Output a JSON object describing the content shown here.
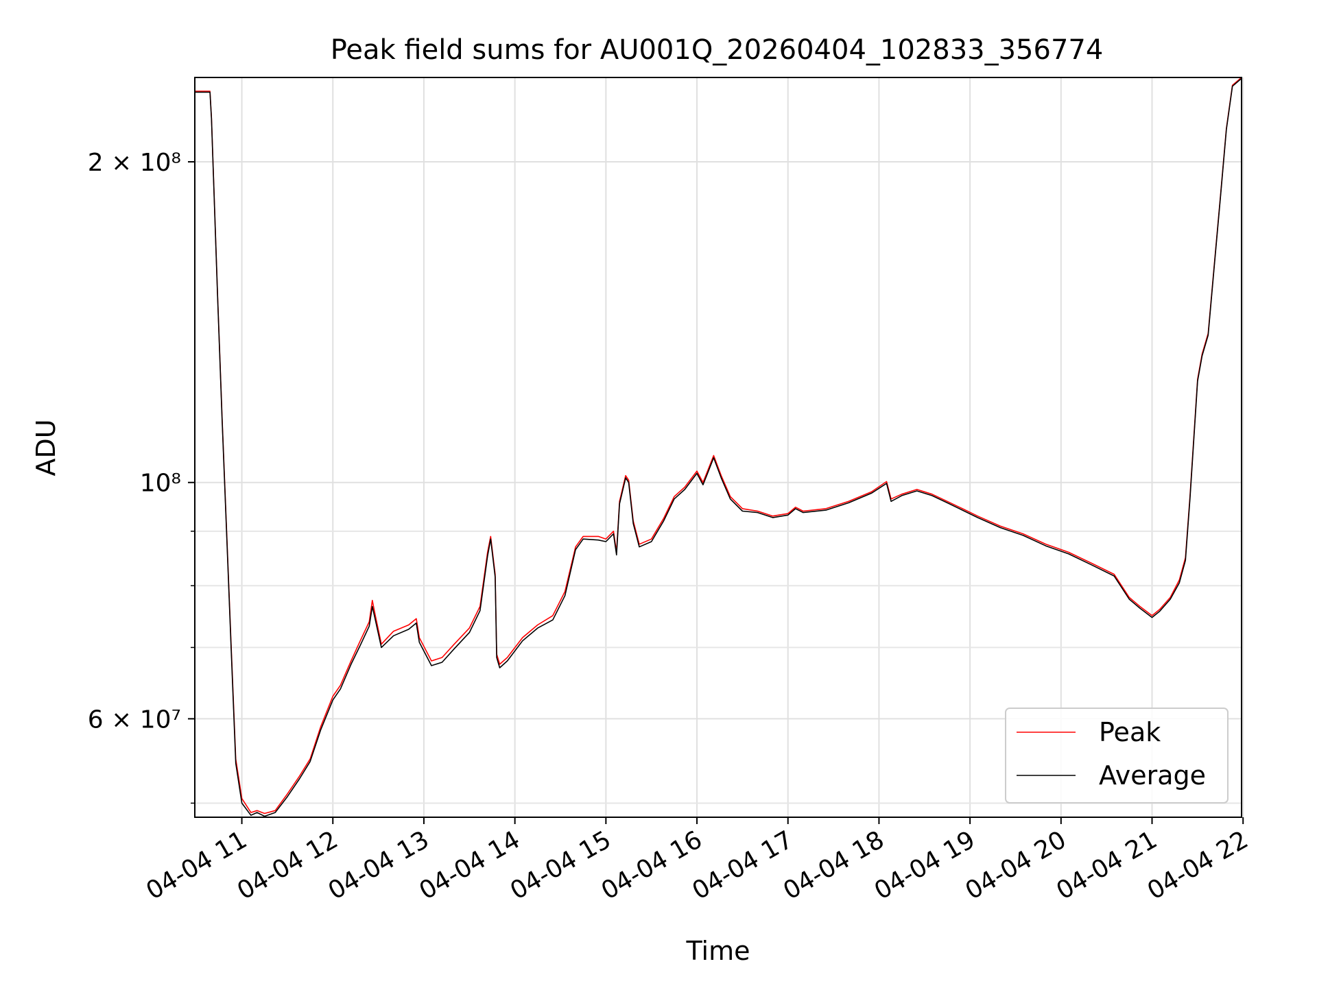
{
  "chart_data": {
    "type": "line",
    "title": "Peak field sums for AU001Q_20260404_102833_356774",
    "xlabel": "Time",
    "ylabel": "ADU",
    "y_scale": "log",
    "grid": true,
    "legend_position": "lower-right",
    "xlim": [
      "2026-04-04 10:29",
      "2026-04-04 21:59"
    ],
    "ylim": [
      48500000,
      240000000
    ],
    "x_ticks": [
      {
        "label": "04-04 11",
        "time": "2026-04-04 11:00"
      },
      {
        "label": "04-04 12",
        "time": "2026-04-04 12:00"
      },
      {
        "label": "04-04 13",
        "time": "2026-04-04 13:00"
      },
      {
        "label": "04-04 14",
        "time": "2026-04-04 14:00"
      },
      {
        "label": "04-04 15",
        "time": "2026-04-04 15:00"
      },
      {
        "label": "04-04 16",
        "time": "2026-04-04 16:00"
      },
      {
        "label": "04-04 17",
        "time": "2026-04-04 17:00"
      },
      {
        "label": "04-04 18",
        "time": "2026-04-04 18:00"
      },
      {
        "label": "04-04 19",
        "time": "2026-04-04 19:00"
      },
      {
        "label": "04-04 20",
        "time": "2026-04-04 20:00"
      },
      {
        "label": "04-04 21",
        "time": "2026-04-04 21:00"
      },
      {
        "label": "04-04 22",
        "time": "2026-04-04 22:00"
      }
    ],
    "y_ticks_major": [
      {
        "label": "6 × 10⁷",
        "value": 60000000
      },
      {
        "label": "10⁸",
        "value": 100000000
      },
      {
        "label": "2 × 10⁸",
        "value": 200000000
      }
    ],
    "y_ticks_minor": [
      50000000,
      70000000,
      80000000,
      90000000
    ],
    "series": [
      {
        "name": "Peak",
        "color": "#ff0000",
        "points": [
          [
            "2026-04-04 10:29",
            233000000
          ],
          [
            "2026-04-04 10:39",
            233000000
          ],
          [
            "2026-04-04 10:40",
            220000000
          ],
          [
            "2026-04-04 10:44",
            150000000
          ],
          [
            "2026-04-04 10:47",
            115000000
          ],
          [
            "2026-04-04 10:50",
            90000000
          ],
          [
            "2026-04-04 10:53",
            70000000
          ],
          [
            "2026-04-04 10:56",
            55000000
          ],
          [
            "2026-04-04 11:00",
            50500000
          ],
          [
            "2026-04-04 11:06",
            49000000
          ],
          [
            "2026-04-04 11:10",
            49200000
          ],
          [
            "2026-04-04 11:15",
            48900000
          ],
          [
            "2026-04-04 11:22",
            49200000
          ],
          [
            "2026-04-04 11:30",
            51000000
          ],
          [
            "2026-04-04 11:38",
            53000000
          ],
          [
            "2026-04-04 11:45",
            55000000
          ],
          [
            "2026-04-04 11:52",
            59000000
          ],
          [
            "2026-04-04 12:00",
            63000000
          ],
          [
            "2026-04-04 12:05",
            64500000
          ],
          [
            "2026-04-04 12:12",
            68000000
          ],
          [
            "2026-04-04 12:18",
            71000000
          ],
          [
            "2026-04-04 12:24",
            74000000
          ],
          [
            "2026-04-04 12:26",
            77500000
          ],
          [
            "2026-04-04 12:28",
            75000000
          ],
          [
            "2026-04-04 12:32",
            70500000
          ],
          [
            "2026-04-04 12:40",
            72500000
          ],
          [
            "2026-04-04 12:50",
            73500000
          ],
          [
            "2026-04-04 12:55",
            74500000
          ],
          [
            "2026-04-04 12:57",
            71500000
          ],
          [
            "2026-04-04 13:05",
            68000000
          ],
          [
            "2026-04-04 13:12",
            68500000
          ],
          [
            "2026-04-04 13:20",
            70500000
          ],
          [
            "2026-04-04 13:30",
            73000000
          ],
          [
            "2026-04-04 13:37",
            76500000
          ],
          [
            "2026-04-04 13:42",
            86000000
          ],
          [
            "2026-04-04 13:44",
            89000000
          ],
          [
            "2026-04-04 13:47",
            82000000
          ],
          [
            "2026-04-04 13:48",
            69000000
          ],
          [
            "2026-04-04 13:50",
            67500000
          ],
          [
            "2026-04-04 13:55",
            68500000
          ],
          [
            "2026-04-04 14:05",
            71500000
          ],
          [
            "2026-04-04 14:15",
            73500000
          ],
          [
            "2026-04-04 14:25",
            75000000
          ],
          [
            "2026-04-04 14:33",
            79000000
          ],
          [
            "2026-04-04 14:40",
            87000000
          ],
          [
            "2026-04-04 14:45",
            89000000
          ],
          [
            "2026-04-04 14:55",
            89000000
          ],
          [
            "2026-04-04 15:00",
            88500000
          ],
          [
            "2026-04-04 15:05",
            90000000
          ],
          [
            "2026-04-04 15:07",
            86000000
          ],
          [
            "2026-04-04 15:09",
            96000000
          ],
          [
            "2026-04-04 15:13",
            101500000
          ],
          [
            "2026-04-04 15:15",
            100500000
          ],
          [
            "2026-04-04 15:18",
            92000000
          ],
          [
            "2026-04-04 15:22",
            87500000
          ],
          [
            "2026-04-04 15:30",
            88500000
          ],
          [
            "2026-04-04 15:38",
            92500000
          ],
          [
            "2026-04-04 15:45",
            97000000
          ],
          [
            "2026-04-04 15:52",
            99000000
          ],
          [
            "2026-04-04 16:00",
            102500000
          ],
          [
            "2026-04-04 16:04",
            100000000
          ],
          [
            "2026-04-04 16:07",
            102500000
          ],
          [
            "2026-04-04 16:11",
            106000000
          ],
          [
            "2026-04-04 16:16",
            101500000
          ],
          [
            "2026-04-04 16:22",
            97000000
          ],
          [
            "2026-04-04 16:30",
            94500000
          ],
          [
            "2026-04-04 16:40",
            94000000
          ],
          [
            "2026-04-04 16:50",
            93000000
          ],
          [
            "2026-04-04 17:00",
            93500000
          ],
          [
            "2026-04-04 17:05",
            94800000
          ],
          [
            "2026-04-04 17:10",
            94000000
          ],
          [
            "2026-04-04 17:25",
            94500000
          ],
          [
            "2026-04-04 17:40",
            96000000
          ],
          [
            "2026-04-04 17:55",
            98000000
          ],
          [
            "2026-04-04 18:05",
            100200000
          ],
          [
            "2026-04-04 18:08",
            96500000
          ],
          [
            "2026-04-04 18:15",
            97500000
          ],
          [
            "2026-04-04 18:25",
            98500000
          ],
          [
            "2026-04-04 18:35",
            97500000
          ],
          [
            "2026-04-04 18:45",
            96000000
          ],
          [
            "2026-04-04 18:55",
            94500000
          ],
          [
            "2026-04-04 19:05",
            93000000
          ],
          [
            "2026-04-04 19:20",
            91000000
          ],
          [
            "2026-04-04 19:35",
            89500000
          ],
          [
            "2026-04-04 19:50",
            87500000
          ],
          [
            "2026-04-04 20:05",
            86000000
          ],
          [
            "2026-04-04 20:20",
            84000000
          ],
          [
            "2026-04-04 20:35",
            82000000
          ],
          [
            "2026-04-04 20:45",
            78000000
          ],
          [
            "2026-04-04 20:52",
            76500000
          ],
          [
            "2026-04-04 21:00",
            75000000
          ],
          [
            "2026-04-04 21:05",
            76000000
          ],
          [
            "2026-04-04 21:12",
            78000000
          ],
          [
            "2026-04-04 21:18",
            81000000
          ],
          [
            "2026-04-04 21:22",
            85000000
          ],
          [
            "2026-04-04 21:25",
            97000000
          ],
          [
            "2026-04-04 21:30",
            125000000
          ],
          [
            "2026-04-04 21:33",
            132000000
          ],
          [
            "2026-04-04 21:37",
            138000000
          ],
          [
            "2026-04-04 21:41",
            160000000
          ],
          [
            "2026-04-04 21:45",
            185000000
          ],
          [
            "2026-04-04 21:49",
            215000000
          ],
          [
            "2026-04-04 21:53",
            236000000
          ],
          [
            "2026-04-04 21:59",
            240000000
          ]
        ]
      },
      {
        "name": "Average",
        "color": "#000000",
        "points": [
          [
            "2026-04-04 10:29",
            232500000
          ],
          [
            "2026-04-04 10:39",
            232500000
          ],
          [
            "2026-04-04 10:40",
            219500000
          ],
          [
            "2026-04-04 10:44",
            149500000
          ],
          [
            "2026-04-04 10:47",
            114500000
          ],
          [
            "2026-04-04 10:50",
            89500000
          ],
          [
            "2026-04-04 10:53",
            69500000
          ],
          [
            "2026-04-04 10:56",
            54500000
          ],
          [
            "2026-04-04 11:00",
            50000000
          ],
          [
            "2026-04-04 11:06",
            48700000
          ],
          [
            "2026-04-04 11:10",
            49000000
          ],
          [
            "2026-04-04 11:15",
            48600000
          ],
          [
            "2026-04-04 11:22",
            49000000
          ],
          [
            "2026-04-04 11:30",
            50700000
          ],
          [
            "2026-04-04 11:38",
            52700000
          ],
          [
            "2026-04-04 11:45",
            54700000
          ],
          [
            "2026-04-04 11:52",
            58600000
          ],
          [
            "2026-04-04 12:00",
            62500000
          ],
          [
            "2026-04-04 12:05",
            64000000
          ],
          [
            "2026-04-04 12:12",
            67500000
          ],
          [
            "2026-04-04 12:18",
            70300000
          ],
          [
            "2026-04-04 12:24",
            73300000
          ],
          [
            "2026-04-04 12:26",
            76500000
          ],
          [
            "2026-04-04 12:28",
            74300000
          ],
          [
            "2026-04-04 12:32",
            70000000
          ],
          [
            "2026-04-04 12:40",
            71800000
          ],
          [
            "2026-04-04 12:50",
            72800000
          ],
          [
            "2026-04-04 12:55",
            73800000
          ],
          [
            "2026-04-04 12:57",
            70800000
          ],
          [
            "2026-04-04 13:05",
            67300000
          ],
          [
            "2026-04-04 13:12",
            67800000
          ],
          [
            "2026-04-04 13:20",
            69800000
          ],
          [
            "2026-04-04 13:30",
            72300000
          ],
          [
            "2026-04-04 13:37",
            75800000
          ],
          [
            "2026-04-04 13:42",
            85300000
          ],
          [
            "2026-04-04 13:44",
            88500000
          ],
          [
            "2026-04-04 13:47",
            81500000
          ],
          [
            "2026-04-04 13:48",
            68500000
          ],
          [
            "2026-04-04 13:50",
            67000000
          ],
          [
            "2026-04-04 13:55",
            68000000
          ],
          [
            "2026-04-04 14:05",
            71000000
          ],
          [
            "2026-04-04 14:15",
            73000000
          ],
          [
            "2026-04-04 14:25",
            74300000
          ],
          [
            "2026-04-04 14:33",
            78300000
          ],
          [
            "2026-04-04 14:40",
            86500000
          ],
          [
            "2026-04-04 14:45",
            88500000
          ],
          [
            "2026-04-04 14:55",
            88300000
          ],
          [
            "2026-04-04 15:00",
            88000000
          ],
          [
            "2026-04-04 15:05",
            89500000
          ],
          [
            "2026-04-04 15:07",
            85500000
          ],
          [
            "2026-04-04 15:09",
            95500000
          ],
          [
            "2026-04-04 15:13",
            101000000
          ],
          [
            "2026-04-04 15:15",
            100000000
          ],
          [
            "2026-04-04 15:18",
            91500000
          ],
          [
            "2026-04-04 15:22",
            87000000
          ],
          [
            "2026-04-04 15:30",
            88000000
          ],
          [
            "2026-04-04 15:38",
            92000000
          ],
          [
            "2026-04-04 15:45",
            96500000
          ],
          [
            "2026-04-04 15:52",
            98500000
          ],
          [
            "2026-04-04 16:00",
            102000000
          ],
          [
            "2026-04-04 16:04",
            99500000
          ],
          [
            "2026-04-04 16:07",
            102000000
          ],
          [
            "2026-04-04 16:11",
            105500000
          ],
          [
            "2026-04-04 16:16",
            101000000
          ],
          [
            "2026-04-04 16:22",
            96500000
          ],
          [
            "2026-04-04 16:30",
            94000000
          ],
          [
            "2026-04-04 16:40",
            93700000
          ],
          [
            "2026-04-04 16:50",
            92700000
          ],
          [
            "2026-04-04 17:00",
            93200000
          ],
          [
            "2026-04-04 17:05",
            94500000
          ],
          [
            "2026-04-04 17:10",
            93700000
          ],
          [
            "2026-04-04 17:25",
            94200000
          ],
          [
            "2026-04-04 17:40",
            95700000
          ],
          [
            "2026-04-04 17:55",
            97700000
          ],
          [
            "2026-04-04 18:05",
            99800000
          ],
          [
            "2026-04-04 18:08",
            96000000
          ],
          [
            "2026-04-04 18:15",
            97200000
          ],
          [
            "2026-04-04 18:25",
            98200000
          ],
          [
            "2026-04-04 18:35",
            97200000
          ],
          [
            "2026-04-04 18:45",
            95700000
          ],
          [
            "2026-04-04 18:55",
            94200000
          ],
          [
            "2026-04-04 19:05",
            92700000
          ],
          [
            "2026-04-04 19:20",
            90700000
          ],
          [
            "2026-04-04 19:35",
            89200000
          ],
          [
            "2026-04-04 19:50",
            87200000
          ],
          [
            "2026-04-04 20:05",
            85700000
          ],
          [
            "2026-04-04 20:20",
            83700000
          ],
          [
            "2026-04-04 20:35",
            81700000
          ],
          [
            "2026-04-04 20:45",
            77700000
          ],
          [
            "2026-04-04 20:52",
            76200000
          ],
          [
            "2026-04-04 21:00",
            74700000
          ],
          [
            "2026-04-04 21:05",
            75700000
          ],
          [
            "2026-04-04 21:12",
            77700000
          ],
          [
            "2026-04-04 21:18",
            80500000
          ],
          [
            "2026-04-04 21:22",
            84500000
          ],
          [
            "2026-04-04 21:25",
            96500000
          ],
          [
            "2026-04-04 21:30",
            124500000
          ],
          [
            "2026-04-04 21:33",
            131500000
          ],
          [
            "2026-04-04 21:37",
            137500000
          ],
          [
            "2026-04-04 21:41",
            159500000
          ],
          [
            "2026-04-04 21:45",
            184500000
          ],
          [
            "2026-04-04 21:49",
            214500000
          ],
          [
            "2026-04-04 21:53",
            235500000
          ],
          [
            "2026-04-04 21:59",
            239500000
          ]
        ]
      }
    ]
  }
}
